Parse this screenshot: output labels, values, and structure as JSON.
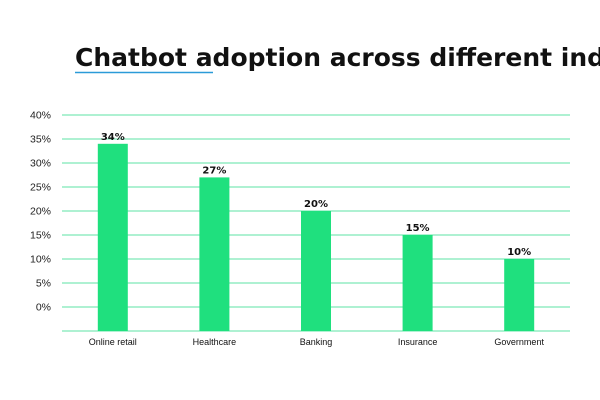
{
  "chart_data": {
    "type": "bar",
    "title": "Chatbot adoption across different industries",
    "xlabel": "",
    "ylabel": "",
    "categories": [
      "Online retail",
      "Healthcare",
      "Banking",
      "Insurance",
      "Government"
    ],
    "values": [
      34,
      27,
      20,
      15,
      10
    ],
    "data_labels": [
      "34%",
      "27%",
      "20%",
      "15%",
      "10%"
    ],
    "yticks": [
      "40%",
      "35%",
      "30%",
      "25%",
      "20%",
      "15%",
      "10%",
      "5%",
      "0%"
    ],
    "ylim": [
      0,
      40
    ],
    "grid": true,
    "legend": "none"
  },
  "colors": {
    "bar": "#1fe07e",
    "gridline": "#5ee3a6",
    "title_underline": "#2b9bd8",
    "text": "#111111"
  }
}
